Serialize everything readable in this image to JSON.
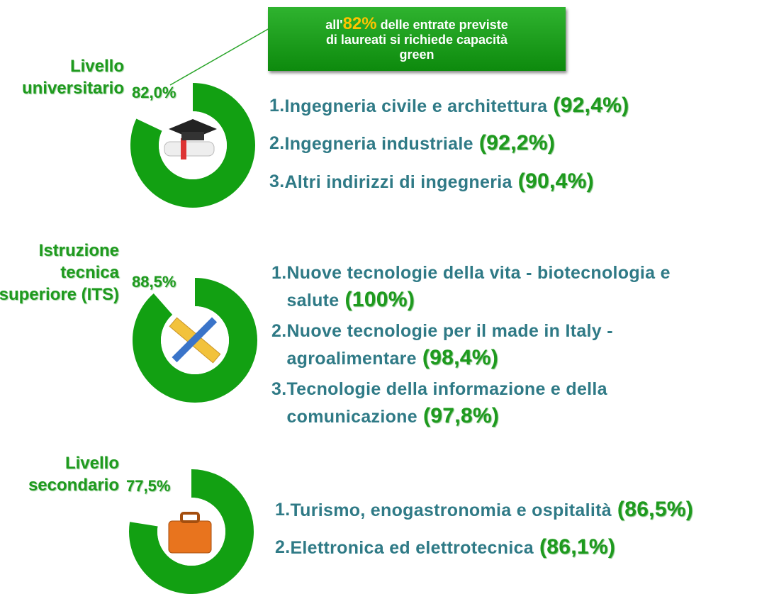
{
  "callout": {
    "prefix": "all'",
    "highlight": "82%",
    "text": "delle entrate previste di laureati si richiede capacità green"
  },
  "sections": [
    {
      "label": "Livello universitario",
      "donut": {
        "value": 82.0,
        "label": "82,0%"
      },
      "items": [
        {
          "rank": "1.",
          "name": "Ingegneria civile e architettura",
          "share": "(92,4%)"
        },
        {
          "rank": "2.",
          "name": "Ingegneria industriale",
          "share": "(92,2%)"
        },
        {
          "rank": "3.",
          "name": "Altri indirizzi di ingegneria",
          "share": "(90,4%)"
        }
      ]
    },
    {
      "label": "Istruzione tecnica superiore (ITS)",
      "donut": {
        "value": 88.5,
        "label": "88,5%"
      },
      "items": [
        {
          "rank": "1.",
          "name": "Nuove tecnologie della vita - biotecnologia e salute",
          "share": "(100%)"
        },
        {
          "rank": "2.",
          "name": "Nuove tecnologie per il made in Italy - agroalimentare",
          "share": "(98,4%)"
        },
        {
          "rank": "3.",
          "name": "Tecnologie della informazione e della comunicazione",
          "share": "(97,8%)"
        }
      ]
    },
    {
      "label": "Livello secondario",
      "donut": {
        "value": 77.5,
        "label": "77,5%"
      },
      "items": [
        {
          "rank": "1.",
          "name": "Turismo, enogastronomia e ospitalità",
          "share": "(86,5%)"
        },
        {
          "rank": "2.",
          "name": "Elettronica ed elettrotecnica",
          "share": "(86,1%)"
        }
      ]
    }
  ]
}
